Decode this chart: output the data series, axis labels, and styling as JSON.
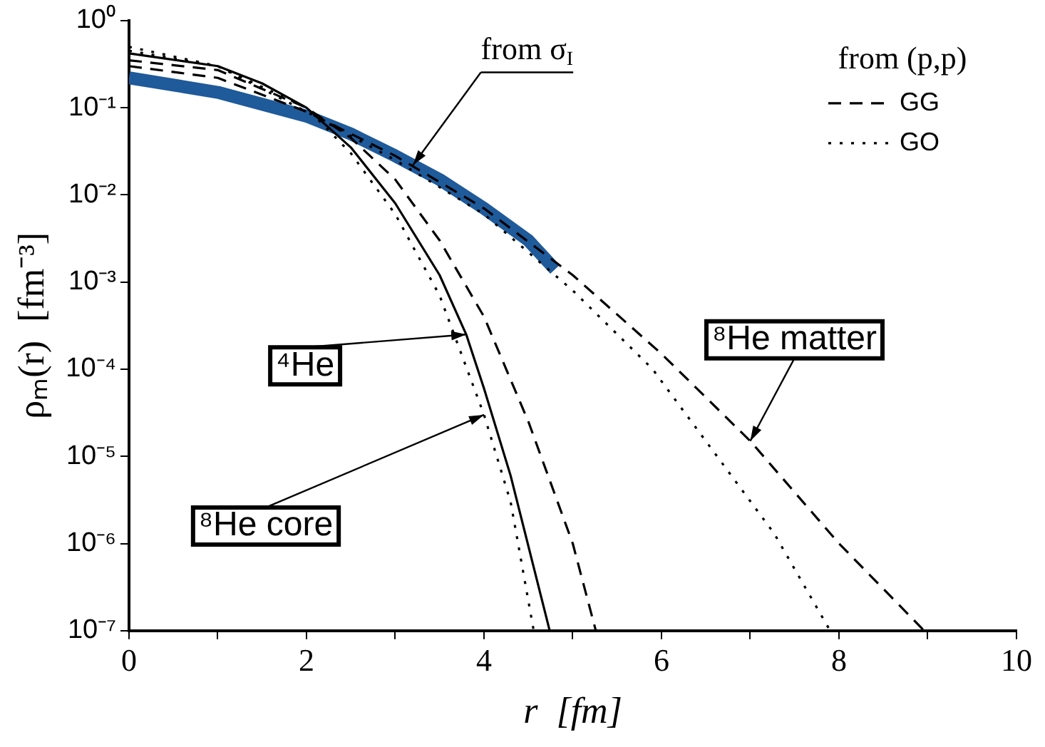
{
  "chart_data": {
    "type": "line",
    "xlabel": "r  [fm]",
    "ylabel": "ρₘ(r)  [fm⁻³]",
    "log": "y",
    "grid": false,
    "legend": "top right",
    "legend_title": "from (p,p)",
    "marker": "none",
    "xlim": [
      0,
      10
    ],
    "xticks": [
      0,
      {
        "value": 1,
        "label": null
      },
      2,
      {
        "value": 3,
        "label": null
      },
      4,
      {
        "value": 5,
        "label": null
      },
      6,
      {
        "value": 7,
        "label": null
      },
      8,
      {
        "value": 9,
        "label": null
      },
      10
    ],
    "ylim": [
      1e-07,
      1
    ],
    "yticks": [
      {
        "value": 1e-07,
        "label": "10⁻⁷"
      },
      {
        "value": 1e-06,
        "label": "10⁻⁶"
      },
      {
        "value": 1e-05,
        "label": "10⁻⁵"
      },
      {
        "value": 0.0001,
        "label": "10⁻⁴"
      },
      {
        "value": 0.001,
        "label": "10⁻³"
      },
      {
        "value": 0.01,
        "label": "10⁻²"
      },
      {
        "value": 0.1,
        "label": "10⁻¹"
      },
      {
        "value": 1,
        "label": "10⁰"
      }
    ],
    "series": [
      {
        "color": "#000000",
        "line_style": "solid",
        "x": [
          0,
          1,
          1.5,
          2,
          2.5,
          3,
          3.5,
          3.8,
          4,
          4.3,
          4.74
        ],
        "values": [
          0.42,
          0.3,
          0.19,
          0.1,
          0.035,
          0.008,
          0.0012,
          0.00025,
          6e-05,
          6e-06,
          1e-07
        ]
      },
      {
        "name": "GG",
        "color": "#000000",
        "line_style": "dashed",
        "x": [
          0,
          1,
          2,
          2.5,
          3,
          3.5,
          4,
          4.5,
          5,
          5.26
        ],
        "values": [
          0.35,
          0.27,
          0.1,
          0.045,
          0.015,
          0.003,
          0.0004,
          2.5e-05,
          1e-06,
          1e-07
        ]
      },
      {
        "name": "GO",
        "color": "#000000",
        "line_style": "dotted",
        "x": [
          0,
          1,
          2,
          2.5,
          3,
          3.5,
          4,
          4.3,
          4.56
        ],
        "values": [
          0.45,
          0.3,
          0.1,
          0.03,
          0.006,
          0.0007,
          3e-05,
          3e-06,
          1e-07
        ]
      },
      {
        "color": "#000000",
        "line_style": "dashed",
        "x": [
          0,
          1,
          2,
          3,
          4,
          5,
          6,
          7,
          8,
          8.96
        ],
        "values": [
          0.3,
          0.22,
          0.09,
          0.028,
          0.007,
          0.0012,
          0.00015,
          1.5e-05,
          1e-06,
          1e-07
        ]
      },
      {
        "color": "#000000",
        "line_style": "dotted",
        "x": [
          0,
          1,
          2,
          3,
          4,
          5,
          5.9,
          7.27,
          7.9
        ],
        "values": [
          0.5,
          0.3,
          0.09,
          0.025,
          0.006,
          0.0008,
          0.0001,
          1.3e-06,
          1e-07
        ]
      },
      {
        "color": "#1f5a9a",
        "line_style": "solid",
        "x": [
          0,
          1,
          2,
          2.5,
          3,
          3.5,
          4,
          4.5,
          4.8
        ],
        "values": [
          0.22,
          0.15,
          0.08,
          0.05,
          0.028,
          0.015,
          0.007,
          0.003,
          0.0014
        ]
      }
    ],
    "annotations": [
      {
        "text": "from σ$_{I}$",
        "x": 3.2,
        "y": 0.022
      },
      {
        "text": "⁴He",
        "x": 3.8,
        "y": 0.00025
      },
      {
        "text": "⁸He core",
        "x": 4,
        "y": 3e-05
      },
      {
        "text": "⁸He matter",
        "x": 7,
        "y": 1.5e-05
      }
    ]
  }
}
